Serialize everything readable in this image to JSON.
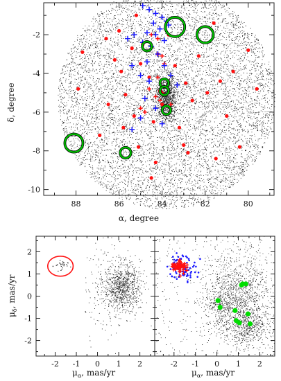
{
  "chart_data": [
    {
      "type": "scatter",
      "xlabel": "α, degree",
      "ylabel": "δ, degree",
      "xlim": [
        89.5,
        78.8
      ],
      "ylim": [
        -10.3,
        -0.35
      ],
      "xticks": [
        88,
        86,
        84,
        82,
        80
      ],
      "yticks": [
        -2,
        -4,
        -6,
        -8,
        -10
      ],
      "field": {
        "center": [
          83.8,
          -5.3
        ],
        "radius_deg": 5.05,
        "n_points": 9000
      },
      "series": [
        {
          "marker": "red-dot",
          "color": "#ff1010",
          "points": [
            [
              87.7,
              -2.9
            ],
            [
              87.9,
              -4.8
            ],
            [
              86.6,
              -2.2
            ],
            [
              86.2,
              -3.3
            ],
            [
              86.0,
              -1.8
            ],
            [
              85.9,
              -3.9
            ],
            [
              85.7,
              -5.1
            ],
            [
              85.4,
              -2.7
            ],
            [
              85.2,
              -1.0
            ],
            [
              85.0,
              -3.5
            ],
            [
              84.9,
              -2.5
            ],
            [
              84.6,
              -4.2
            ],
            [
              84.4,
              -6.5
            ],
            [
              84.2,
              -3.0
            ],
            [
              84.1,
              -4.9
            ],
            [
              84.0,
              -5.6
            ],
            [
              83.7,
              -2.0
            ],
            [
              83.4,
              -3.6
            ],
            [
              83.2,
              -6.8
            ],
            [
              82.9,
              -4.5
            ],
            [
              82.6,
              -5.4
            ],
            [
              82.3,
              -3.1
            ],
            [
              81.9,
              -5.0
            ],
            [
              81.6,
              -1.4
            ],
            [
              81.3,
              -4.4
            ],
            [
              81.0,
              -6.2
            ],
            [
              80.7,
              -3.9
            ],
            [
              80.0,
              -2.8
            ],
            [
              79.6,
              -4.8
            ],
            [
              86.9,
              -7.2
            ],
            [
              85.1,
              -7.8
            ],
            [
              84.3,
              -8.6
            ],
            [
              84.5,
              -9.4
            ],
            [
              82.8,
              -8.1
            ],
            [
              81.5,
              -8.4
            ],
            [
              80.4,
              -7.8
            ],
            [
              85.8,
              -6.8
            ],
            [
              86.5,
              -5.6
            ],
            [
              83.0,
              -7.7
            ],
            [
              85.3,
              -6.2
            ]
          ]
        },
        {
          "marker": "blue-plus",
          "color": "#1818ff",
          "points": [
            [
              84.9,
              -0.5
            ],
            [
              84.6,
              -0.7
            ],
            [
              84.3,
              -0.9
            ],
            [
              84.0,
              -1.1
            ],
            [
              83.8,
              -1.3
            ],
            [
              84.4,
              -1.4
            ],
            [
              84.1,
              -1.7
            ],
            [
              83.7,
              -1.5
            ],
            [
              84.7,
              -1.9
            ],
            [
              85.3,
              -2.0
            ],
            [
              85.6,
              -2.2
            ],
            [
              84.9,
              -2.4
            ],
            [
              84.5,
              -2.6
            ],
            [
              83.9,
              -2.3
            ],
            [
              84.2,
              -3.0
            ],
            [
              84.7,
              -3.4
            ],
            [
              85.4,
              -3.6
            ],
            [
              85.0,
              -4.1
            ],
            [
              84.6,
              -4.4
            ],
            [
              83.6,
              -4.1
            ],
            [
              83.3,
              -4.6
            ],
            [
              84.8,
              -5.3
            ],
            [
              84.3,
              -5.8
            ],
            [
              85.0,
              -6.3
            ],
            [
              85.4,
              -6.9
            ],
            [
              84.0,
              -6.6
            ],
            [
              83.9,
              -3.6
            ],
            [
              84.3,
              -2.0
            ]
          ]
        },
        {
          "marker": "green-circle",
          "color": "#00c800",
          "points": [
            [
              88.1,
              -7.6
            ],
            [
              85.7,
              -8.1
            ],
            [
              84.7,
              -2.6
            ],
            [
              83.9,
              -4.5
            ],
            [
              83.9,
              -4.9
            ],
            [
              83.8,
              -5.9
            ],
            [
              83.4,
              -1.6
            ],
            [
              82.0,
              -2.0
            ]
          ],
          "radii_deg": [
            0.42,
            0.25,
            0.22,
            0.2,
            0.2,
            0.2,
            0.45,
            0.38
          ]
        }
      ]
    },
    {
      "type": "scatter",
      "xlabel": "μα, mas/yr",
      "ylabel": "μδ, mas/yr",
      "xlim": [
        -2.9,
        2.7
      ],
      "ylim": [
        -2.7,
        2.7
      ],
      "xticks": [
        -2,
        -1,
        0,
        1,
        2
      ],
      "yticks": [
        2,
        1,
        0,
        -1,
        -2
      ],
      "ellipse": {
        "center": [
          -1.75,
          1.35
        ],
        "rx": 0.6,
        "ry": 0.45,
        "color": "#ff1010"
      },
      "clumps": [
        {
          "center": [
            1.15,
            0.42
          ],
          "n_points": 850
        },
        {
          "center": [
            -1.75,
            1.35
          ],
          "n_points": 28
        }
      ]
    },
    {
      "type": "scatter",
      "xlabel": "μα, mas/yr",
      "xlim": [
        -2.9,
        2.7
      ],
      "ylim": [
        -2.7,
        2.7
      ],
      "xticks": [
        -2,
        -1,
        0,
        1,
        2
      ],
      "series": [
        {
          "marker": "blue-dot",
          "color": "#1818ff",
          "center": [
            -1.6,
            1.3
          ],
          "n_points": 90
        },
        {
          "marker": "red-plus",
          "color": "#ff1010",
          "center": [
            -1.75,
            1.35
          ],
          "n_points": 55
        },
        {
          "marker": "green-dot",
          "color": "#00dd00",
          "points": [
            [
              1.2,
              0.55
            ],
            [
              1.35,
              0.55
            ],
            [
              0.05,
              -0.2
            ],
            [
              0.15,
              -0.5
            ],
            [
              0.85,
              -0.65
            ],
            [
              1.45,
              -0.8
            ],
            [
              0.9,
              -1.1
            ],
            [
              1.05,
              -1.2
            ],
            [
              1.55,
              -1.25
            ],
            [
              1.15,
              0.5
            ]
          ]
        }
      ]
    }
  ]
}
